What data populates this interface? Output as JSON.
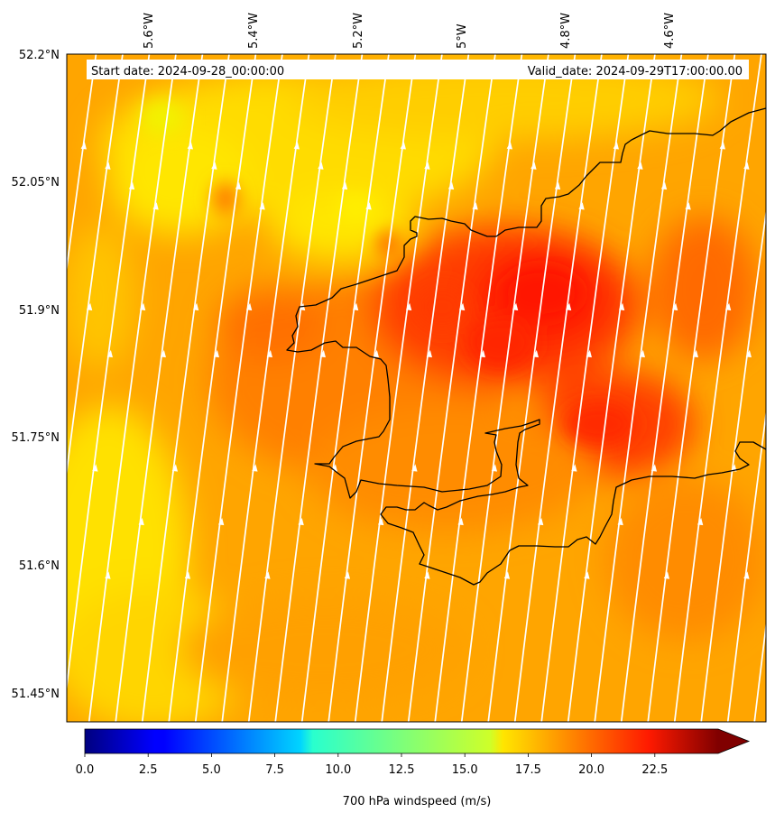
{
  "header": {
    "start_date": "Start date: 2024-09-28_00:00:00",
    "valid_date": "Valid_date: 2024-09-29T17:00:00.00"
  },
  "axes": {
    "lon_ticks": [
      "5.6°W",
      "5.4°W",
      "5.2°W",
      "5°W",
      "4.8°W",
      "4.6°W"
    ],
    "lat_ticks": [
      "52.2°N",
      "52.05°N",
      "51.9°N",
      "51.75°N",
      "51.6°N",
      "51.45°N"
    ]
  },
  "colorbar": {
    "label": "700 hPa windspeed (m/s)",
    "ticks": [
      "0.0",
      "2.5",
      "5.0",
      "7.5",
      "10.0",
      "12.5",
      "15.0",
      "17.5",
      "20.0",
      "22.5"
    ],
    "min": 0,
    "max": 25,
    "extend": "max",
    "colormap": "jet"
  },
  "field": {
    "variable": "700 hPa windspeed",
    "typical_range_ms": [
      15,
      24
    ],
    "background_color": "#ffa500",
    "low_color": "#ffe100",
    "high_color": "#ff2000"
  },
  "streamlines": {
    "color": "#ffffff",
    "direction_icon": "arrow-up-icon"
  },
  "coastline": {
    "color": "#000000"
  }
}
